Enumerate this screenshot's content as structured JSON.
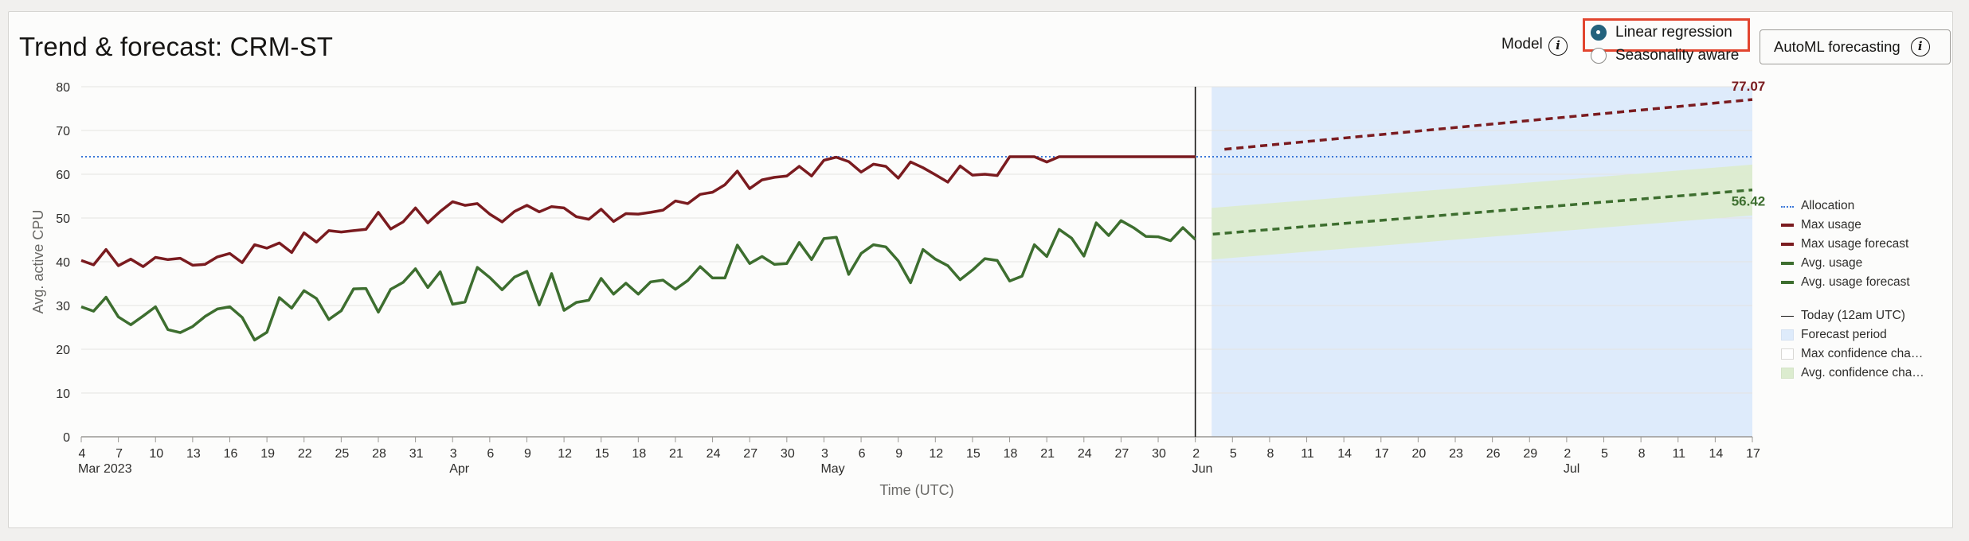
{
  "header": {
    "title": "Trend & forecast: CRM-ST",
    "model_label": "Model",
    "model_options": [
      {
        "label": "Linear regression",
        "selected": true
      },
      {
        "label": "Seasonality aware",
        "selected": false
      }
    ],
    "automl_button_label": "AutoML forecasting",
    "info_icon_glyph": "i"
  },
  "colors": {
    "max_usage": "#7a1b1f",
    "avg_usage": "#3d6e2f",
    "allocation": "#3c78d8",
    "today_line": "#161513",
    "forecast_band": "#deebfb",
    "avg_confidence": "#dceccf",
    "highlight_border": "#e2452f",
    "radio_selected": "#23627d"
  },
  "chart_data": {
    "type": "line",
    "title": "Trend & forecast: CRM-ST",
    "xlabel": "Time (UTC)",
    "ylabel": "Avg. active CPU",
    "ylim": [
      0,
      80
    ],
    "yticks": [
      0,
      10,
      20,
      30,
      40,
      50,
      60,
      70,
      80
    ],
    "grid": "horizontal",
    "legend_position": "right",
    "xlim": [
      "2023-03-04",
      "2023-07-17"
    ],
    "xticks": [
      {
        "date": "2023-03-04",
        "label": "4",
        "month": "Mar 2023"
      },
      {
        "date": "2023-03-07",
        "label": "7"
      },
      {
        "date": "2023-03-10",
        "label": "10"
      },
      {
        "date": "2023-03-13",
        "label": "13"
      },
      {
        "date": "2023-03-16",
        "label": "16"
      },
      {
        "date": "2023-03-19",
        "label": "19"
      },
      {
        "date": "2023-03-22",
        "label": "22"
      },
      {
        "date": "2023-03-25",
        "label": "25"
      },
      {
        "date": "2023-03-28",
        "label": "28"
      },
      {
        "date": "2023-03-31",
        "label": "31"
      },
      {
        "date": "2023-04-03",
        "label": "3",
        "month": "Apr"
      },
      {
        "date": "2023-04-06",
        "label": "6"
      },
      {
        "date": "2023-04-09",
        "label": "9"
      },
      {
        "date": "2023-04-12",
        "label": "12"
      },
      {
        "date": "2023-04-15",
        "label": "15"
      },
      {
        "date": "2023-04-18",
        "label": "18"
      },
      {
        "date": "2023-04-21",
        "label": "21"
      },
      {
        "date": "2023-04-24",
        "label": "24"
      },
      {
        "date": "2023-04-27",
        "label": "27"
      },
      {
        "date": "2023-04-30",
        "label": "30"
      },
      {
        "date": "2023-05-03",
        "label": "3",
        "month": "May"
      },
      {
        "date": "2023-05-06",
        "label": "6"
      },
      {
        "date": "2023-05-09",
        "label": "9"
      },
      {
        "date": "2023-05-12",
        "label": "12"
      },
      {
        "date": "2023-05-15",
        "label": "15"
      },
      {
        "date": "2023-05-18",
        "label": "18"
      },
      {
        "date": "2023-05-21",
        "label": "21"
      },
      {
        "date": "2023-05-24",
        "label": "24"
      },
      {
        "date": "2023-05-27",
        "label": "27"
      },
      {
        "date": "2023-05-30",
        "label": "30"
      },
      {
        "date": "2023-06-02",
        "label": "2",
        "month": "Jun"
      },
      {
        "date": "2023-06-05",
        "label": "5"
      },
      {
        "date": "2023-06-08",
        "label": "8"
      },
      {
        "date": "2023-06-11",
        "label": "11"
      },
      {
        "date": "2023-06-14",
        "label": "14"
      },
      {
        "date": "2023-06-17",
        "label": "17"
      },
      {
        "date": "2023-06-20",
        "label": "20"
      },
      {
        "date": "2023-06-23",
        "label": "23"
      },
      {
        "date": "2023-06-26",
        "label": "26"
      },
      {
        "date": "2023-06-29",
        "label": "29"
      },
      {
        "date": "2023-07-02",
        "label": "2",
        "month": "Jul"
      },
      {
        "date": "2023-07-05",
        "label": "5"
      },
      {
        "date": "2023-07-08",
        "label": "8"
      },
      {
        "date": "2023-07-11",
        "label": "11"
      },
      {
        "date": "2023-07-14",
        "label": "14"
      },
      {
        "date": "2023-07-17",
        "label": "17"
      }
    ],
    "today": "2023-06-02",
    "forecast_period": [
      "2023-06-03",
      "2023-07-17"
    ],
    "allocation": 64,
    "series": [
      {
        "name": "Max usage",
        "x_start": "2023-03-04",
        "values": [
          40.3,
          39.3,
          42.8,
          39.1,
          40.6,
          38.9,
          41.0,
          40.5,
          40.8,
          39.2,
          39.4,
          41.1,
          41.9,
          39.8,
          43.9,
          43.1,
          44.3,
          42.1,
          46.6,
          44.5,
          47.1,
          46.8,
          47.1,
          47.4,
          51.3,
          47.5,
          49.1,
          52.3,
          48.9,
          51.5,
          53.7,
          52.9,
          53.3,
          50.9,
          49.1,
          51.5,
          52.9,
          51.4,
          52.6,
          52.3,
          50.3,
          49.7,
          52.0,
          49.2,
          51.0,
          50.9,
          51.3,
          51.8,
          53.9,
          53.3,
          55.4,
          55.9,
          57.6,
          60.7,
          56.7,
          58.7,
          59.3,
          59.6,
          61.8,
          59.6,
          63.2,
          63.9,
          62.9,
          60.5,
          62.3,
          61.8,
          59.1,
          62.8,
          61.5,
          59.9,
          58.2,
          61.9,
          59.8,
          60.0,
          59.7,
          64.0,
          64.0,
          64.0,
          62.8,
          64.0,
          64.0,
          64.0,
          64.0,
          64.0,
          64.0,
          64.0,
          64.0,
          64.0,
          64.0,
          64.0,
          64.0
        ]
      },
      {
        "name": "Max usage forecast",
        "x": [
          "2023-06-05",
          "2023-07-17"
        ],
        "values": [
          65.7,
          77.07
        ],
        "end_label": "77.07"
      },
      {
        "name": "Avg. usage",
        "x_start": "2023-03-04",
        "values": [
          29.7,
          28.7,
          31.9,
          27.4,
          25.6,
          27.6,
          29.7,
          24.5,
          23.8,
          25.2,
          27.5,
          29.2,
          29.7,
          27.3,
          22.1,
          23.9,
          31.8,
          29.4,
          33.4,
          31.6,
          26.8,
          28.8,
          33.8,
          33.9,
          28.5,
          33.7,
          35.3,
          38.4,
          34.1,
          37.7,
          30.3,
          30.8,
          38.7,
          36.4,
          33.6,
          36.5,
          37.8,
          30.1,
          37.3,
          28.9,
          30.7,
          31.2,
          36.2,
          32.6,
          35.1,
          32.6,
          35.4,
          35.8,
          33.7,
          35.7,
          38.9,
          36.3,
          36.3,
          43.8,
          39.6,
          41.2,
          39.4,
          39.6,
          44.4,
          40.5,
          45.3,
          45.6,
          37.1,
          41.9,
          43.9,
          43.4,
          40.2,
          35.2,
          42.8,
          40.6,
          39.1,
          35.9,
          38.1,
          40.7,
          40.3,
          35.6,
          36.7,
          43.9,
          41.2,
          47.4,
          45.4,
          41.3,
          48.9,
          46.0,
          49.4,
          47.8,
          45.8,
          45.7,
          44.8,
          47.8,
          45.1
        ]
      },
      {
        "name": "Avg. usage forecast",
        "x": [
          "2023-06-02",
          "2023-07-17"
        ],
        "values": [
          46.3,
          56.42
        ],
        "end_label": "56.42"
      }
    ],
    "avg_confidence_band": {
      "x": [
        "2023-06-03",
        "2023-07-17"
      ],
      "lower": [
        40.5,
        50.6
      ],
      "upper": [
        52.3,
        62.2
      ]
    },
    "legend": [
      {
        "label": "Allocation",
        "style": "dotted-line",
        "color": "allocation"
      },
      {
        "label": "Max usage",
        "style": "solid-line",
        "color": "max_usage"
      },
      {
        "label": "Max usage forecast",
        "style": "dashed-line",
        "color": "max_usage"
      },
      {
        "label": "Avg. usage",
        "style": "solid-line",
        "color": "avg_usage"
      },
      {
        "label": "Avg. usage forecast",
        "style": "dashed-line",
        "color": "avg_usage"
      },
      {
        "label": "Today (12am UTC)",
        "style": "thin-line",
        "color": "today_line"
      },
      {
        "label": "Forecast period",
        "style": "box",
        "color": "forecast_band"
      },
      {
        "label": "Max confidence cha…",
        "style": "box-empty",
        "color": "#ffffff"
      },
      {
        "label": "Avg. confidence cha…",
        "style": "box",
        "color": "avg_confidence"
      }
    ]
  }
}
